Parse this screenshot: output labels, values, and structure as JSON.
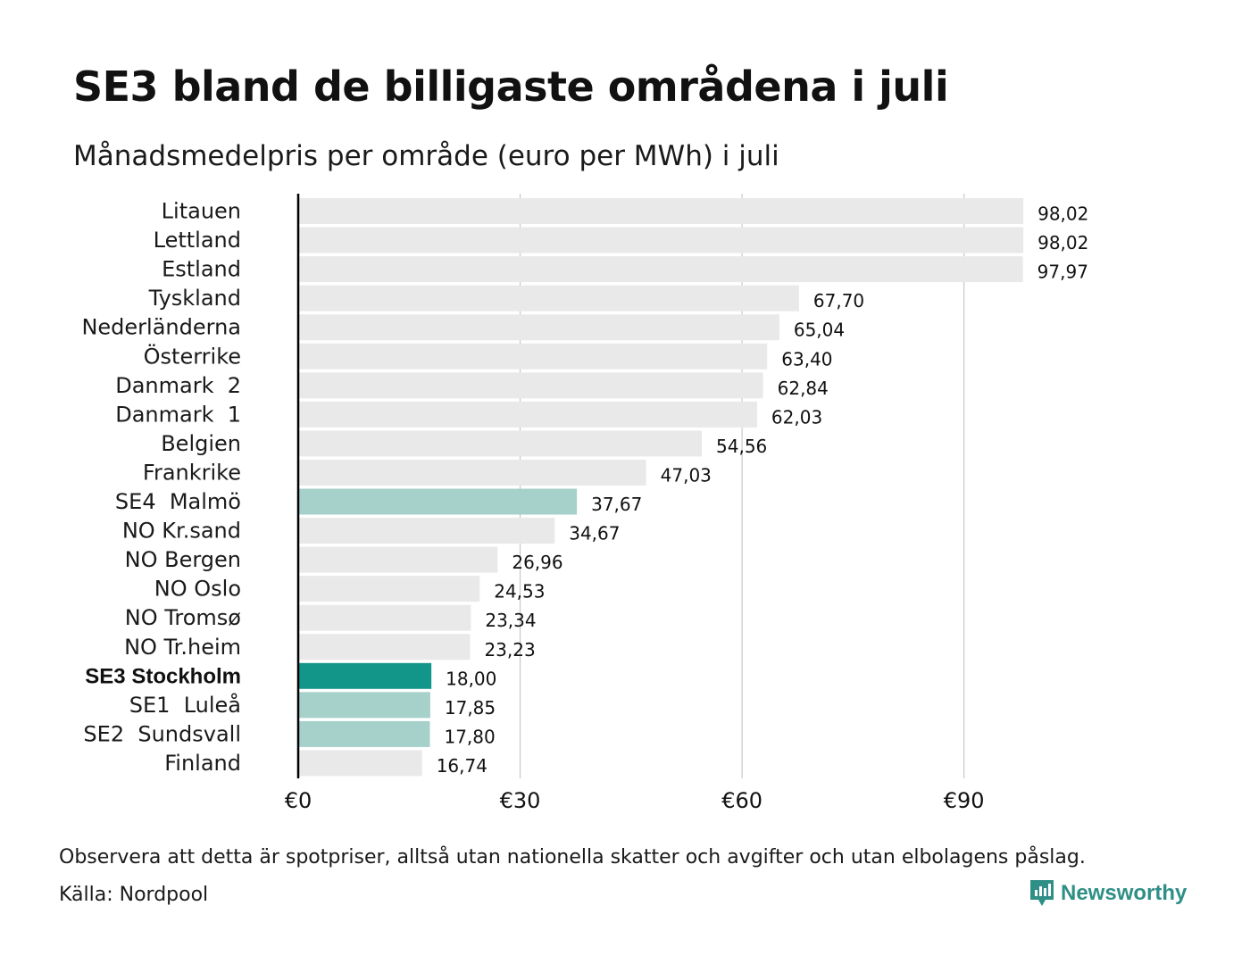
{
  "title": "SE3 bland de billigaste områdena i juli",
  "subtitle": "Månadsmedelpris per område (euro per MWh) i juli",
  "note": "Observera att detta är spotpriser, alltså utan nationella skatter och avgifter och utan elbolagens påslag.",
  "source": "Källa: Nordpool",
  "logo": {
    "text": "Newsworthy",
    "icon": "newsworthy-chart-icon",
    "color": "#2f8f86"
  },
  "colors": {
    "default": "#e9e9e9",
    "swedish_zone": "#a6d0ca",
    "highlight": "#13968a",
    "grid": "#c8c8c8",
    "axis": "#000000"
  },
  "chart_data": {
    "type": "bar",
    "orientation": "horizontal",
    "title": "SE3 bland de billigaste områdena i juli",
    "subtitle": "Månadsmedelpris per område (euro per MWh) i juli",
    "xlim": [
      0,
      105
    ],
    "x_ticks": [
      0,
      30,
      60,
      90
    ],
    "x_tick_labels": [
      "€0",
      "€30",
      "€60",
      "€90"
    ],
    "grid": true,
    "categories": [
      "Litauen",
      "Lettland",
      "Estland",
      "Tyskland",
      "Nederländerna",
      "Österrike",
      "Danmark  2",
      "Danmark  1",
      "Belgien",
      "Frankrike",
      "SE4  Malmö",
      "NO Kr.sand",
      "NO Bergen",
      "NO Oslo",
      "NO Tromsø",
      "NO Tr.heim",
      "SE3 Stockholm",
      "SE1  Luleå",
      "SE2  Sundsvall",
      "Finland"
    ],
    "values": [
      98.02,
      98.02,
      97.97,
      67.7,
      65.04,
      63.4,
      62.84,
      62.03,
      54.56,
      47.03,
      37.67,
      34.67,
      26.96,
      24.53,
      23.34,
      23.23,
      18.0,
      17.85,
      17.8,
      16.74
    ],
    "value_labels": [
      "98,02",
      "98,02",
      "97,97",
      "67,70",
      "65,04",
      "63,40",
      "62,84",
      "62,03",
      "54,56",
      "47,03",
      "37,67",
      "34,67",
      "26,96",
      "24,53",
      "23,34",
      "23,23",
      "18,00",
      "17,85",
      "17,80",
      "16,74"
    ],
    "bar_style": [
      "default",
      "default",
      "default",
      "default",
      "default",
      "default",
      "default",
      "default",
      "default",
      "default",
      "swedish_zone",
      "default",
      "default",
      "default",
      "default",
      "default",
      "highlight",
      "swedish_zone",
      "swedish_zone",
      "default"
    ],
    "bold_category": "SE3 Stockholm"
  }
}
